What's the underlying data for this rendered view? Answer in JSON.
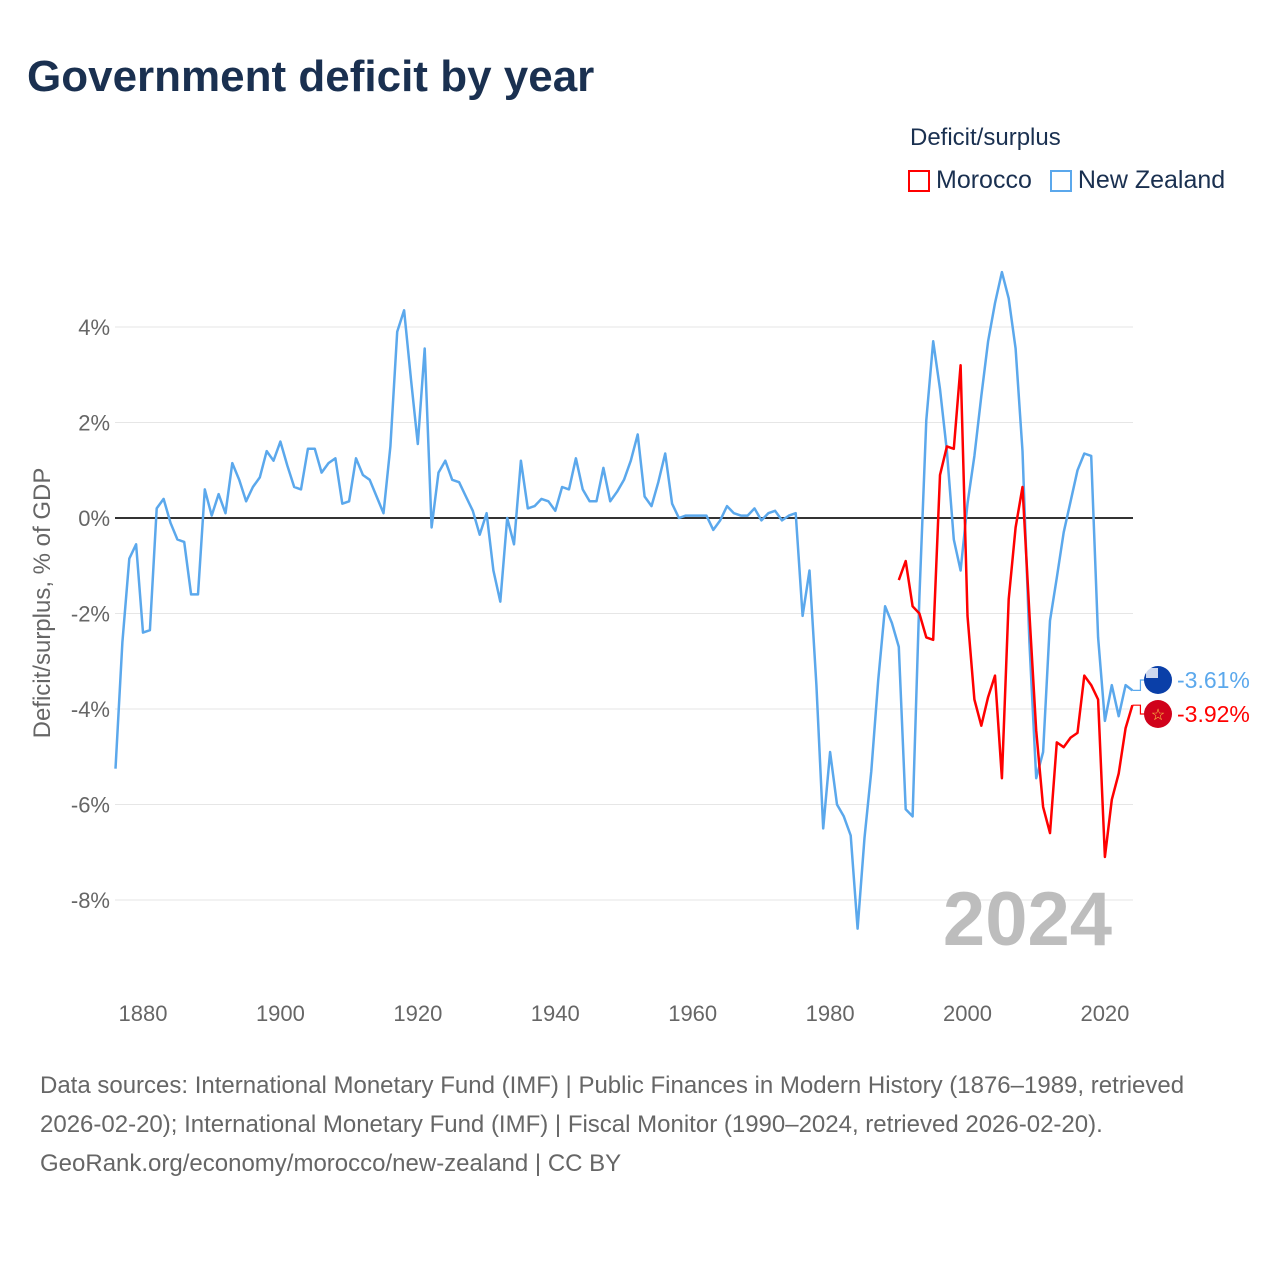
{
  "title": "Government deficit by year",
  "legend": {
    "title": "Deficit/surplus",
    "items": [
      {
        "name": "Morocco",
        "color": "#ff0000"
      },
      {
        "name": "New Zealand",
        "color": "#5ba8ec"
      }
    ]
  },
  "footer": {
    "sources": "Data sources: International Monetary Fund (IMF) | Public Finances in Modern History (1876–1989, retrieved 2026-02-20); International Monetary Fund (IMF) | Fiscal Monitor (1990–2024, retrieved 2026-02-20).",
    "credit": "GeoRank.org/economy/morocco/new-zealand | CC BY"
  },
  "chart_data": {
    "type": "line",
    "title": "Government deficit by year",
    "ylabel": "Deficit/surplus, % of GDP",
    "xlabel": "",
    "xlim": [
      1876,
      2024
    ],
    "ylim": [
      -10,
      5.5
    ],
    "xticks": [
      1880,
      1900,
      1920,
      1940,
      1960,
      1980,
      2000,
      2020
    ],
    "yticks": [
      -8,
      -6,
      -4,
      -2,
      0,
      2,
      4
    ],
    "ytick_labels": [
      "-8%",
      "-6%",
      "-4%",
      "-2%",
      "0%",
      "2%",
      "4%"
    ],
    "year_watermark": "2024",
    "series": [
      {
        "name": "New Zealand",
        "color": "#5ba8ec",
        "start_year": 1876,
        "end_label": "-3.61%",
        "values": [
          -5.25,
          -2.6,
          -0.85,
          -0.55,
          -2.4,
          -2.35,
          0.2,
          0.4,
          -0.1,
          -0.45,
          -0.5,
          -1.6,
          -1.6,
          0.6,
          0.05,
          0.5,
          0.1,
          1.15,
          0.8,
          0.35,
          0.65,
          0.85,
          1.4,
          1.2,
          1.6,
          1.1,
          0.65,
          0.6,
          1.45,
          1.45,
          0.95,
          1.15,
          1.25,
          0.3,
          0.35,
          1.25,
          0.9,
          0.8,
          0.45,
          0.1,
          1.5,
          3.9,
          4.35,
          2.9,
          1.55,
          3.55,
          -0.2,
          0.95,
          1.2,
          0.8,
          0.75,
          0.45,
          0.15,
          -0.35,
          0.1,
          -1.1,
          -1.75,
          0,
          -0.55,
          1.2,
          0.2,
          0.25,
          0.4,
          0.35,
          0.15,
          0.65,
          0.6,
          1.25,
          0.6,
          0.35,
          0.35,
          1.05,
          0.35,
          0.55,
          0.8,
          1.2,
          1.75,
          0.45,
          0.25,
          0.75,
          1.35,
          0.3,
          0,
          0.05,
          0.05,
          0.05,
          0.05,
          -0.25,
          -0.05,
          0.25,
          0.1,
          0.05,
          0.05,
          0.2,
          -0.05,
          0.1,
          0.15,
          -0.05,
          0.05,
          0.1,
          -2.05,
          -1.1,
          -3.5,
          -6.5,
          -4.9,
          -6.0,
          -6.25,
          -6.65,
          -8.6,
          -6.7,
          -5.3,
          -3.4,
          -1.85,
          -2.2,
          -2.7,
          -6.1,
          -6.25,
          -1.65,
          2.05,
          3.7,
          2.7,
          1.4,
          -0.45,
          -1.1,
          0.3,
          1.3,
          2.55,
          3.7,
          4.5,
          5.15,
          4.6,
          3.55,
          1.4,
          -2.6,
          -5.45,
          -4.9,
          -2.15,
          -1.25,
          -0.3,
          0.35,
          1.0,
          1.35,
          1.3,
          -2.5,
          -4.25,
          -3.5,
          -4.15,
          -3.5,
          -3.61
        ]
      },
      {
        "name": "Morocco",
        "color": "#ff0000",
        "start_year": 1990,
        "end_label": "-3.92%",
        "values": [
          -1.3,
          -0.9,
          -1.85,
          -2.0,
          -2.5,
          -2.55,
          0.9,
          1.5,
          1.45,
          3.2,
          -2.05,
          -3.8,
          -4.35,
          -3.75,
          -3.3,
          -5.45,
          -1.7,
          -0.2,
          0.65,
          -2.0,
          -4.45,
          -6.05,
          -6.6,
          -4.7,
          -4.8,
          -4.6,
          -4.5,
          -3.3,
          -3.5,
          -3.8,
          -7.1,
          -5.9,
          -5.35,
          -4.4,
          -3.92
        ]
      }
    ]
  }
}
